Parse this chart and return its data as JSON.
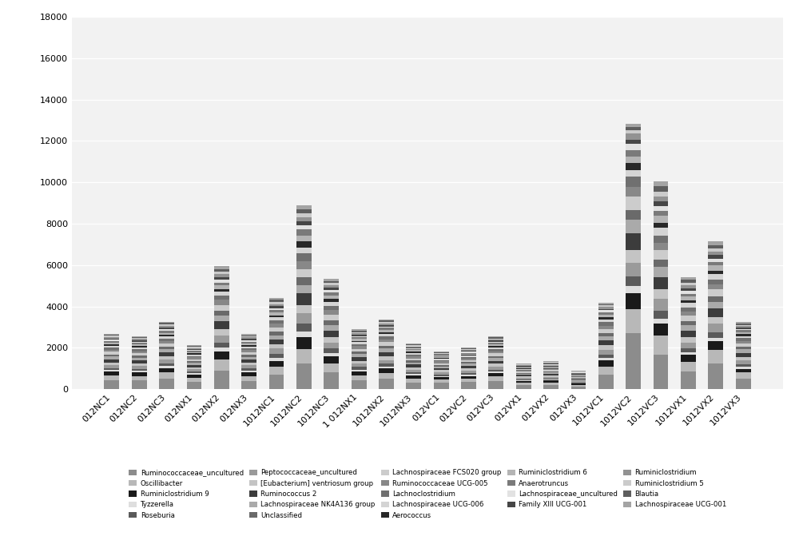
{
  "categories": [
    "012NC1",
    "012NC2",
    "012NC3",
    "012NX1",
    "012NX2",
    "012NX3",
    "1012NC1",
    "1012NC2",
    "1012NC3",
    "1 012NX1",
    "1012NX2",
    "1012NX3",
    "012VC1",
    "012VC2",
    "012VC3",
    "012VX1",
    "012VX2",
    "012VX3",
    "1012VC1",
    "1012VC2",
    "1012VC3",
    "1012VX1",
    "1012VX2",
    "1012VX3"
  ],
  "totals": [
    2550,
    2450,
    3100,
    2400,
    6450,
    2550,
    4900,
    9650,
    5450,
    3250,
    3450,
    2350,
    2000,
    2100,
    2550,
    1350,
    1500,
    900,
    5800,
    16050,
    11800,
    6600,
    8300,
    3200
  ],
  "series": [
    {
      "name": "Ruminococcaceae_uncultured",
      "color": "#8c8c8c",
      "fracs": [
        0.17,
        0.17,
        0.17,
        0.15,
        0.14,
        0.16,
        0.14,
        0.13,
        0.15,
        0.13,
        0.15,
        0.14,
        0.15,
        0.16,
        0.16,
        0.15,
        0.14,
        0.15,
        0.12,
        0.17,
        0.14,
        0.13,
        0.15,
        0.16
      ]
    },
    {
      "name": "Oscillibacter",
      "color": "#b8b8b8",
      "fracs": [
        0.09,
        0.09,
        0.09,
        0.08,
        0.08,
        0.09,
        0.08,
        0.07,
        0.08,
        0.07,
        0.08,
        0.08,
        0.08,
        0.08,
        0.08,
        0.08,
        0.08,
        0.08,
        0.07,
        0.07,
        0.08,
        0.07,
        0.08,
        0.09
      ]
    },
    {
      "name": "Ruminiclostridium 9",
      "color": "#1a1a1a",
      "fracs": [
        0.07,
        0.07,
        0.07,
        0.06,
        0.06,
        0.07,
        0.06,
        0.06,
        0.06,
        0.06,
        0.06,
        0.06,
        0.06,
        0.06,
        0.06,
        0.06,
        0.06,
        0.06,
        0.05,
        0.05,
        0.05,
        0.05,
        0.05,
        0.06
      ]
    },
    {
      "name": "Tyzzerella",
      "color": "#dedede",
      "fracs": [
        0.03,
        0.03,
        0.03,
        0.03,
        0.03,
        0.03,
        0.03,
        0.03,
        0.03,
        0.03,
        0.03,
        0.03,
        0.03,
        0.03,
        0.03,
        0.03,
        0.03,
        0.03,
        0.02,
        0.02,
        0.02,
        0.02,
        0.02,
        0.03
      ]
    },
    {
      "name": "Roseburia",
      "color": "#5a5a5a",
      "fracs": [
        0.04,
        0.04,
        0.04,
        0.03,
        0.04,
        0.04,
        0.04,
        0.04,
        0.04,
        0.04,
        0.04,
        0.04,
        0.04,
        0.04,
        0.04,
        0.04,
        0.04,
        0.04,
        0.03,
        0.03,
        0.03,
        0.03,
        0.03,
        0.04
      ]
    },
    {
      "name": "Peptococcaceae_uncultured",
      "color": "#9a9a9a",
      "fracs": [
        0.06,
        0.06,
        0.06,
        0.05,
        0.05,
        0.06,
        0.05,
        0.05,
        0.05,
        0.05,
        0.05,
        0.05,
        0.05,
        0.06,
        0.06,
        0.05,
        0.05,
        0.06,
        0.04,
        0.04,
        0.05,
        0.04,
        0.05,
        0.06
      ]
    },
    {
      "name": "[Eubacterium] ventriosum group",
      "color": "#c4c4c4",
      "fracs": [
        0.05,
        0.05,
        0.05,
        0.04,
        0.05,
        0.05,
        0.04,
        0.04,
        0.05,
        0.04,
        0.05,
        0.05,
        0.05,
        0.05,
        0.05,
        0.05,
        0.05,
        0.05,
        0.04,
        0.04,
        0.04,
        0.04,
        0.04,
        0.05
      ]
    },
    {
      "name": "Ruminococcus 2",
      "color": "#3c3c3c",
      "fracs": [
        0.06,
        0.06,
        0.06,
        0.05,
        0.06,
        0.06,
        0.05,
        0.06,
        0.06,
        0.06,
        0.06,
        0.06,
        0.05,
        0.06,
        0.06,
        0.05,
        0.05,
        0.06,
        0.04,
        0.05,
        0.05,
        0.05,
        0.05,
        0.06
      ]
    },
    {
      "name": "Lachnospiraceae NK4A136 group",
      "color": "#aaaaaa",
      "fracs": [
        0.05,
        0.05,
        0.05,
        0.04,
        0.04,
        0.05,
        0.04,
        0.04,
        0.05,
        0.04,
        0.05,
        0.04,
        0.04,
        0.05,
        0.05,
        0.04,
        0.04,
        0.05,
        0.03,
        0.04,
        0.04,
        0.04,
        0.04,
        0.05
      ]
    },
    {
      "name": "Unclassified",
      "color": "#6a6a6a",
      "fracs": [
        0.04,
        0.04,
        0.04,
        0.03,
        0.04,
        0.04,
        0.04,
        0.04,
        0.04,
        0.04,
        0.04,
        0.04,
        0.04,
        0.04,
        0.04,
        0.04,
        0.04,
        0.04,
        0.03,
        0.03,
        0.03,
        0.03,
        0.03,
        0.04
      ]
    },
    {
      "name": "Lachnospiraceae FCS020 group",
      "color": "#cccccc",
      "fracs": [
        0.05,
        0.05,
        0.05,
        0.04,
        0.04,
        0.05,
        0.04,
        0.04,
        0.05,
        0.04,
        0.05,
        0.04,
        0.04,
        0.04,
        0.05,
        0.04,
        0.04,
        0.05,
        0.03,
        0.04,
        0.04,
        0.04,
        0.04,
        0.05
      ]
    },
    {
      "name": "Ruminococcaceae UCG-005",
      "color": "#888888",
      "fracs": [
        0.04,
        0.04,
        0.04,
        0.04,
        0.04,
        0.04,
        0.04,
        0.04,
        0.04,
        0.04,
        0.04,
        0.04,
        0.04,
        0.04,
        0.04,
        0.04,
        0.04,
        0.04,
        0.03,
        0.03,
        0.03,
        0.03,
        0.03,
        0.04
      ]
    },
    {
      "name": "Lachnoclostridium",
      "color": "#707070",
      "fracs": [
        0.04,
        0.04,
        0.04,
        0.03,
        0.03,
        0.04,
        0.03,
        0.04,
        0.04,
        0.03,
        0.04,
        0.04,
        0.03,
        0.03,
        0.04,
        0.03,
        0.03,
        0.04,
        0.03,
        0.03,
        0.03,
        0.03,
        0.03,
        0.04
      ]
    },
    {
      "name": "Lachnospiraceae UCG-006",
      "color": "#d4d4d4",
      "fracs": [
        0.03,
        0.03,
        0.03,
        0.03,
        0.03,
        0.03,
        0.03,
        0.03,
        0.03,
        0.03,
        0.03,
        0.03,
        0.03,
        0.03,
        0.03,
        0.03,
        0.03,
        0.03,
        0.02,
        0.02,
        0.03,
        0.03,
        0.03,
        0.03
      ]
    },
    {
      "name": "Aerococcus",
      "color": "#282828",
      "fracs": [
        0.03,
        0.03,
        0.03,
        0.02,
        0.02,
        0.03,
        0.02,
        0.03,
        0.03,
        0.02,
        0.03,
        0.03,
        0.02,
        0.02,
        0.03,
        0.02,
        0.02,
        0.03,
        0.02,
        0.02,
        0.02,
        0.02,
        0.02,
        0.03
      ]
    },
    {
      "name": "Ruminiclostridium 6",
      "color": "#b4b4b4",
      "fracs": [
        0.03,
        0.03,
        0.03,
        0.03,
        0.03,
        0.03,
        0.03,
        0.03,
        0.03,
        0.03,
        0.03,
        0.03,
        0.03,
        0.03,
        0.03,
        0.03,
        0.03,
        0.03,
        0.02,
        0.02,
        0.03,
        0.03,
        0.03,
        0.03
      ]
    },
    {
      "name": "Anaerotruncus",
      "color": "#7a7a7a",
      "fracs": [
        0.03,
        0.03,
        0.03,
        0.02,
        0.02,
        0.03,
        0.02,
        0.03,
        0.03,
        0.02,
        0.03,
        0.02,
        0.02,
        0.02,
        0.03,
        0.02,
        0.02,
        0.03,
        0.02,
        0.02,
        0.02,
        0.02,
        0.02,
        0.03
      ]
    },
    {
      "name": "Lachnospiraceae_uncultured",
      "color": "#e2e2e2",
      "fracs": [
        0.03,
        0.03,
        0.03,
        0.02,
        0.02,
        0.03,
        0.02,
        0.02,
        0.02,
        0.02,
        0.02,
        0.02,
        0.02,
        0.02,
        0.02,
        0.02,
        0.02,
        0.02,
        0.02,
        0.02,
        0.02,
        0.02,
        0.02,
        0.02
      ]
    },
    {
      "name": "Family XIII UCG-001",
      "color": "#464646",
      "fracs": [
        0.02,
        0.02,
        0.02,
        0.02,
        0.02,
        0.02,
        0.02,
        0.02,
        0.02,
        0.02,
        0.02,
        0.02,
        0.02,
        0.02,
        0.02,
        0.02,
        0.02,
        0.02,
        0.01,
        0.01,
        0.02,
        0.02,
        0.02,
        0.02
      ]
    },
    {
      "name": "Ruminiclostridium",
      "color": "#929292",
      "fracs": [
        0.03,
        0.03,
        0.03,
        0.02,
        0.02,
        0.03,
        0.02,
        0.02,
        0.02,
        0.02,
        0.02,
        0.02,
        0.02,
        0.02,
        0.02,
        0.02,
        0.02,
        0.02,
        0.02,
        0.02,
        0.02,
        0.02,
        0.02,
        0.02
      ]
    },
    {
      "name": "Ruminiclostridium 5",
      "color": "#cbcbcb",
      "fracs": [
        0.02,
        0.02,
        0.02,
        0.02,
        0.02,
        0.02,
        0.02,
        0.02,
        0.02,
        0.02,
        0.02,
        0.02,
        0.02,
        0.02,
        0.02,
        0.02,
        0.02,
        0.02,
        0.01,
        0.01,
        0.02,
        0.02,
        0.02,
        0.02
      ]
    },
    {
      "name": "Blautia",
      "color": "#5e5e5e",
      "fracs": [
        0.02,
        0.02,
        0.02,
        0.02,
        0.02,
        0.02,
        0.02,
        0.02,
        0.02,
        0.02,
        0.02,
        0.02,
        0.02,
        0.02,
        0.02,
        0.02,
        0.02,
        0.02,
        0.01,
        0.01,
        0.02,
        0.02,
        0.02,
        0.02
      ]
    },
    {
      "name": "Lachnospiraceae UCG-001",
      "color": "#a4a4a4",
      "fracs": [
        0.02,
        0.02,
        0.02,
        0.02,
        0.02,
        0.02,
        0.02,
        0.02,
        0.02,
        0.02,
        0.02,
        0.02,
        0.02,
        0.02,
        0.02,
        0.02,
        0.02,
        0.02,
        0.01,
        0.01,
        0.02,
        0.02,
        0.02,
        0.02
      ]
    }
  ],
  "ylim": [
    0,
    18000
  ],
  "yticks": [
    0,
    2000,
    4000,
    6000,
    8000,
    10000,
    12000,
    14000,
    16000,
    18000
  ],
  "figsize": [
    10.0,
    6.96
  ],
  "dpi": 100,
  "bg_color": "#f2f2f2"
}
